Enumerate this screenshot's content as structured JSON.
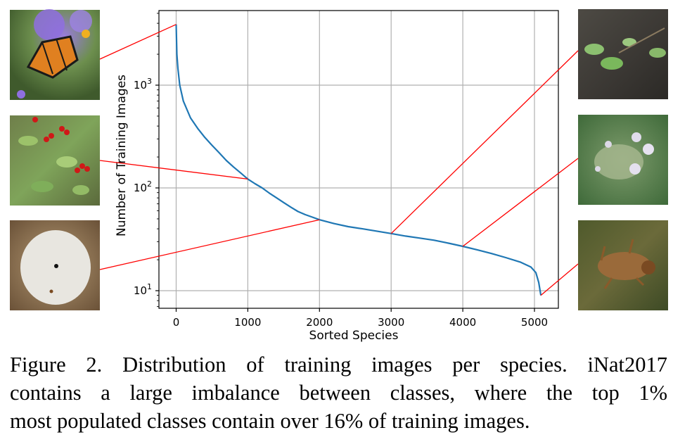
{
  "chart_data": {
    "type": "line",
    "title": "",
    "xlabel": "Sorted Species",
    "ylabel": "Number of Training Images",
    "yscale": "log",
    "xlim": [
      -240,
      5340
    ],
    "ylim": [
      6.5,
      6000
    ],
    "grid": true,
    "x_ticks": [
      0,
      1000,
      2000,
      3000,
      4000,
      5000
    ],
    "x_tick_labels": [
      "0",
      "1000",
      "2000",
      "3000",
      "4000",
      "5000"
    ],
    "y_ticks": [
      10,
      100,
      1000
    ],
    "y_tick_labels": [
      {
        "base": "10",
        "exp": "1"
      },
      {
        "base": "10",
        "exp": "2"
      },
      {
        "base": "10",
        "exp": "3"
      }
    ],
    "series": [
      {
        "name": "training images per species",
        "color": "#1f77b4",
        "x": [
          0,
          10,
          25,
          50,
          100,
          200,
          300,
          400,
          500,
          600,
          700,
          800,
          900,
          1000,
          1100,
          1200,
          1300,
          1400,
          1500,
          1600,
          1700,
          1800,
          1900,
          2000,
          2200,
          2400,
          2600,
          2800,
          3000,
          3200,
          3400,
          3600,
          3800,
          4000,
          4200,
          4400,
          4600,
          4800,
          4950,
          5020,
          5060,
          5089
        ],
        "y": [
          3900,
          2000,
          1450,
          1000,
          700,
          480,
          380,
          310,
          260,
          220,
          185,
          160,
          140,
          122,
          110,
          100,
          89,
          80,
          72,
          65,
          59,
          55,
          52,
          49,
          45,
          42,
          40,
          38,
          36,
          34,
          32.5,
          31,
          29,
          27,
          25,
          23,
          21,
          19,
          17,
          15,
          12,
          9
        ]
      }
    ],
    "annotations": [
      {
        "label": "monarch butterfly",
        "x": 0,
        "y": 3900,
        "side": "left",
        "slot": 0
      },
      {
        "label": "red berries shrub",
        "x": 1000,
        "y": 122,
        "side": "left",
        "slot": 1
      },
      {
        "label": "sand dollar",
        "x": 2000,
        "y": 49,
        "side": "left",
        "slot": 2
      },
      {
        "label": "green plant on rock",
        "x": 3000,
        "y": 36,
        "side": "right",
        "slot": 0
      },
      {
        "label": "white flowering plant",
        "x": 4000,
        "y": 27,
        "side": "right",
        "slot": 1
      },
      {
        "label": "brown cricket insect",
        "x": 5089,
        "y": 9,
        "side": "right",
        "slot": 2
      }
    ],
    "annotation_line_color": "#ff0000"
  },
  "thumbnails": [
    {
      "label": "monarch butterfly on purple aster",
      "icon": "butterfly-photo"
    },
    {
      "label": "shrub with red berries",
      "icon": "berries-photo"
    },
    {
      "label": "sand dollar on sand",
      "icon": "sand-dollar-photo"
    },
    {
      "label": "small green plant on rock",
      "icon": "moss-plant-photo"
    },
    {
      "label": "white flowering mint plant",
      "icon": "flower-plant-photo"
    },
    {
      "label": "brown cricket in grass",
      "icon": "cricket-photo"
    }
  ],
  "caption": {
    "lines": [
      "Figure 2. Distribution of training images per species.  iNat2017",
      "contains a large imbalance between classes, where the top 1%",
      "most populated classes contain over 16% of training images."
    ]
  }
}
